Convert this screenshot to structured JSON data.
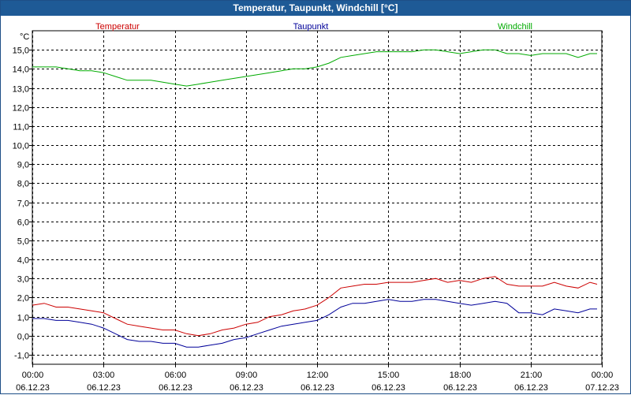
{
  "window": {
    "title": "Temperatur, Taupunkt, Windchill [°C]"
  },
  "chart_data": {
    "type": "line",
    "title": "Temperatur, Taupunkt, Windchill [°C]",
    "ylabel": "°C",
    "ylim": [
      -1.5,
      16.0
    ],
    "xlim": [
      0,
      24
    ],
    "grid": true,
    "legend_position": "top",
    "yticks": [
      -1.0,
      0.0,
      1.0,
      2.0,
      3.0,
      4.0,
      5.0,
      6.0,
      7.0,
      8.0,
      9.0,
      10.0,
      11.0,
      12.0,
      13.0,
      14.0,
      15.0
    ],
    "ytick_labels": [
      "-1,0",
      "0,0",
      "1,0",
      "2,0",
      "3,0",
      "4,0",
      "5,0",
      "6,0",
      "7,0",
      "8,0",
      "9,0",
      "10,0",
      "11,0",
      "12,0",
      "13,0",
      "14,0",
      "15,0"
    ],
    "xticks": [
      0,
      3,
      6,
      9,
      12,
      15,
      18,
      21,
      24
    ],
    "xtick_labels": [
      {
        "time": "00:00",
        "date": "06.12.23"
      },
      {
        "time": "03:00",
        "date": "06.12.23"
      },
      {
        "time": "06:00",
        "date": "06.12.23"
      },
      {
        "time": "09:00",
        "date": "06.12.23"
      },
      {
        "time": "12:00",
        "date": "06.12.23"
      },
      {
        "time": "15:00",
        "date": "06.12.23"
      },
      {
        "time": "18:00",
        "date": "06.12.23"
      },
      {
        "time": "21:00",
        "date": "06.12.23"
      },
      {
        "time": "00:00",
        "date": "07.12.23"
      }
    ],
    "x": [
      0,
      0.5,
      1,
      1.5,
      2,
      2.5,
      3,
      3.5,
      4,
      4.5,
      5,
      5.5,
      6,
      6.5,
      7,
      7.5,
      8,
      8.5,
      9,
      9.5,
      10,
      10.5,
      11,
      11.5,
      12,
      12.5,
      13,
      13.5,
      14,
      14.5,
      15,
      15.5,
      16,
      16.5,
      17,
      17.5,
      18,
      18.5,
      19,
      19.5,
      20,
      20.5,
      21,
      21.5,
      22,
      22.5,
      23,
      23.5,
      23.8
    ],
    "series": [
      {
        "name": "Temperatur",
        "color": "#cc0000",
        "values": [
          1.6,
          1.7,
          1.5,
          1.5,
          1.4,
          1.3,
          1.2,
          0.9,
          0.6,
          0.5,
          0.4,
          0.3,
          0.3,
          0.1,
          0.0,
          0.1,
          0.3,
          0.4,
          0.6,
          0.7,
          1.0,
          1.1,
          1.3,
          1.4,
          1.6,
          2.0,
          2.5,
          2.6,
          2.7,
          2.7,
          2.8,
          2.8,
          2.8,
          2.9,
          3.0,
          2.8,
          2.9,
          2.8,
          3.0,
          3.1,
          2.7,
          2.6,
          2.6,
          2.6,
          2.8,
          2.6,
          2.5,
          2.8,
          2.7
        ]
      },
      {
        "name": "Taupunkt",
        "color": "#000099",
        "values": [
          0.9,
          0.9,
          0.8,
          0.8,
          0.7,
          0.6,
          0.4,
          0.1,
          -0.2,
          -0.3,
          -0.3,
          -0.4,
          -0.4,
          -0.6,
          -0.6,
          -0.5,
          -0.4,
          -0.2,
          -0.1,
          0.1,
          0.3,
          0.5,
          0.6,
          0.7,
          0.8,
          1.1,
          1.5,
          1.7,
          1.7,
          1.8,
          1.9,
          1.8,
          1.8,
          1.9,
          1.9,
          1.8,
          1.7,
          1.6,
          1.7,
          1.8,
          1.7,
          1.2,
          1.2,
          1.1,
          1.4,
          1.3,
          1.2,
          1.4,
          1.4
        ]
      },
      {
        "name": "Windchill",
        "color": "#00aa00",
        "values": [
          14.1,
          14.1,
          14.1,
          14.0,
          13.9,
          13.9,
          13.8,
          13.6,
          13.4,
          13.4,
          13.4,
          13.3,
          13.2,
          13.1,
          13.2,
          13.3,
          13.4,
          13.5,
          13.6,
          13.7,
          13.8,
          13.9,
          14.0,
          14.0,
          14.1,
          14.3,
          14.6,
          14.7,
          14.8,
          14.9,
          14.9,
          14.9,
          14.9,
          15.0,
          15.0,
          14.9,
          14.8,
          14.9,
          15.0,
          15.0,
          14.8,
          14.8,
          14.7,
          14.8,
          14.8,
          14.8,
          14.6,
          14.8,
          14.8
        ]
      }
    ]
  }
}
